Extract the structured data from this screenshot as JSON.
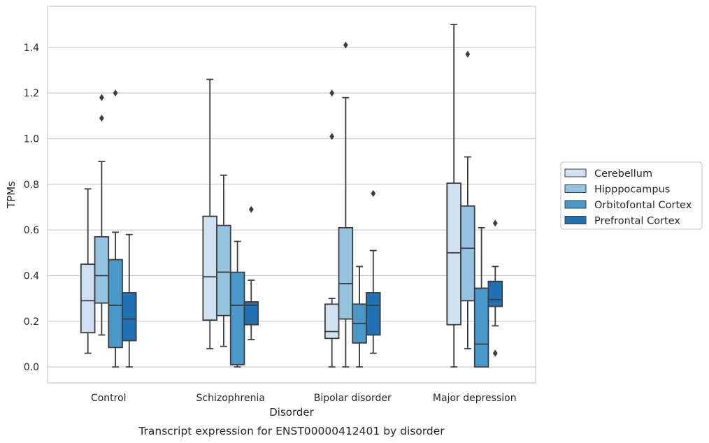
{
  "chart_data": {
    "type": "box",
    "title": "",
    "caption": "Transcript expression for ENST00000412401 by disorder",
    "xlabel": "Disorder",
    "ylabel": "TPMs",
    "ylim": [
      -0.07,
      1.58
    ],
    "yticks": [
      0.0,
      0.2,
      0.4,
      0.6,
      0.8,
      1.0,
      1.2,
      1.4
    ],
    "ytick_labels": [
      "0.0",
      "0.2",
      "0.4",
      "0.6",
      "0.8",
      "1.0",
      "1.2",
      "1.4"
    ],
    "grid": "horizontal",
    "legend_position": "right",
    "categories": [
      "Control",
      "Schizophrenia",
      "Bipolar disorder",
      "Major depression"
    ],
    "series": [
      {
        "name": "Cerebellum",
        "color": "#d0e1f2",
        "boxes": [
          {
            "whisker_low": 0.06,
            "q1": 0.15,
            "median": 0.29,
            "q3": 0.45,
            "whisker_high": 0.78,
            "outliers": []
          },
          {
            "whisker_low": 0.08,
            "q1": 0.205,
            "median": 0.395,
            "q3": 0.66,
            "whisker_high": 1.26,
            "outliers": []
          },
          {
            "whisker_low": 0.0,
            "q1": 0.125,
            "median": 0.155,
            "q3": 0.275,
            "whisker_high": 0.3,
            "outliers": [
              1.01,
              1.2
            ]
          },
          {
            "whisker_low": 0.0,
            "q1": 0.185,
            "median": 0.5,
            "q3": 0.805,
            "whisker_high": 1.5,
            "outliers": []
          }
        ]
      },
      {
        "name": "Hipppocampus",
        "color": "#94c4df",
        "boxes": [
          {
            "whisker_low": 0.14,
            "q1": 0.28,
            "median": 0.4,
            "q3": 0.57,
            "whisker_high": 0.9,
            "outliers": [
              1.09,
              1.18
            ]
          },
          {
            "whisker_low": 0.09,
            "q1": 0.225,
            "median": 0.415,
            "q3": 0.62,
            "whisker_high": 0.84,
            "outliers": []
          },
          {
            "whisker_low": 0.0,
            "q1": 0.21,
            "median": 0.365,
            "q3": 0.61,
            "whisker_high": 1.18,
            "outliers": [
              1.41
            ]
          },
          {
            "whisker_low": 0.08,
            "q1": 0.29,
            "median": 0.52,
            "q3": 0.705,
            "whisker_high": 0.92,
            "outliers": [
              1.37
            ]
          }
        ]
      },
      {
        "name": "Orbitofontal Cortex",
        "color": "#4a98c9",
        "boxes": [
          {
            "whisker_low": 0.0,
            "q1": 0.085,
            "median": 0.27,
            "q3": 0.47,
            "whisker_high": 0.59,
            "outliers": [
              1.2
            ]
          },
          {
            "whisker_low": 0.0,
            "q1": 0.01,
            "median": 0.27,
            "q3": 0.415,
            "whisker_high": 0.55,
            "outliers": []
          },
          {
            "whisker_low": 0.0,
            "q1": 0.105,
            "median": 0.19,
            "q3": 0.275,
            "whisker_high": 0.44,
            "outliers": []
          },
          {
            "whisker_low": 0.0,
            "q1": 0.0,
            "median": 0.1,
            "q3": 0.345,
            "whisker_high": 0.61,
            "outliers": []
          }
        ]
      },
      {
        "name": "Prefrontal Cortex",
        "color": "#2171b5",
        "boxes": [
          {
            "whisker_low": 0.0,
            "q1": 0.115,
            "median": 0.21,
            "q3": 0.325,
            "whisker_high": 0.58,
            "outliers": []
          },
          {
            "whisker_low": 0.12,
            "q1": 0.185,
            "median": 0.27,
            "q3": 0.285,
            "whisker_high": 0.38,
            "outliers": [
              0.69
            ]
          },
          {
            "whisker_low": 0.06,
            "q1": 0.14,
            "median": 0.27,
            "q3": 0.325,
            "whisker_high": 0.51,
            "outliers": [
              0.76
            ]
          },
          {
            "whisker_low": 0.18,
            "q1": 0.265,
            "median": 0.295,
            "q3": 0.375,
            "whisker_high": 0.44,
            "outliers": [
              0.06,
              0.63
            ]
          }
        ]
      }
    ]
  }
}
